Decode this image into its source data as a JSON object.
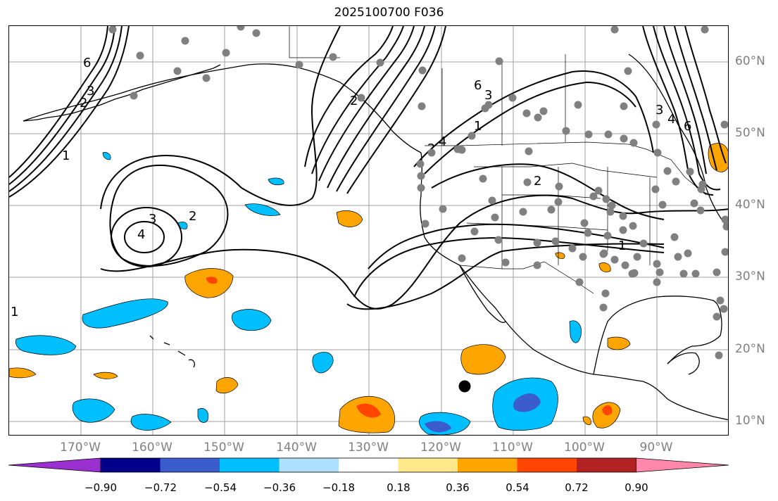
{
  "title": "2025100700 F036",
  "lon_labels": [
    "170°W",
    "160°W",
    "150°W",
    "140°W",
    "130°W",
    "120°W",
    "110°W",
    "100°W",
    "90°W"
  ],
  "lat_labels": [
    "60°N",
    "50°N",
    "40°N",
    "30°N",
    "20°N",
    "10°N"
  ],
  "colorbar": {
    "tick_labels": [
      "−0.90",
      "−0.72",
      "−0.54",
      "−0.36",
      "−0.18",
      "0.18",
      "0.36",
      "0.54",
      "0.72",
      "0.90"
    ],
    "colors": [
      "#9b30d0",
      "#00008b",
      "#3a5ccc",
      "#00bfff",
      "#b0e0ff",
      "#ffffff",
      "#ffe98a",
      "#ffa500",
      "#ff4500",
      "#b22222",
      "#ff88aa"
    ]
  },
  "contour_labels": [
    "6",
    "3",
    "2",
    "1",
    "2",
    "3",
    "4",
    "6",
    "1",
    "2",
    "3",
    "4",
    "2",
    "1",
    "2",
    "3",
    "4",
    "6",
    "1"
  ],
  "marker": "storm-center-dot"
}
